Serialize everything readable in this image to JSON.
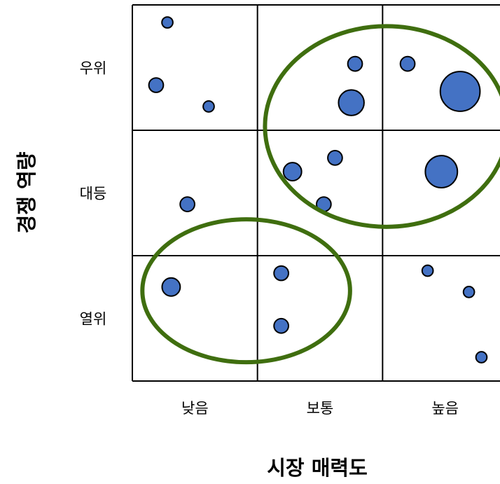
{
  "chart_data": {
    "type": "scatter",
    "variant": "bubble matrix (3x3 grid)",
    "xlabel": "시장 매력도",
    "ylabel": "경쟁 역량",
    "x_categories": [
      "낮음",
      "보통",
      "높음"
    ],
    "y_categories": [
      "열위",
      "대등",
      "우위"
    ],
    "grid": true,
    "legend": "none",
    "colors": {
      "bubble_fill": "#4472c4",
      "bubble_stroke": "#000000",
      "ellipse_stroke": "#3f6e0f"
    },
    "points": [
      {
        "x": 0.28,
        "y": 2.86,
        "size": 1
      },
      {
        "x": 0.19,
        "y": 2.36,
        "size": 2
      },
      {
        "x": 0.61,
        "y": 2.19,
        "size": 1
      },
      {
        "x": 1.78,
        "y": 2.53,
        "size": 2
      },
      {
        "x": 1.75,
        "y": 2.22,
        "size": 5
      },
      {
        "x": 2.2,
        "y": 2.53,
        "size": 2
      },
      {
        "x": 2.62,
        "y": 2.31,
        "size": 8
      },
      {
        "x": 0.44,
        "y": 1.41,
        "size": 2
      },
      {
        "x": 1.28,
        "y": 1.67,
        "size": 3
      },
      {
        "x": 1.62,
        "y": 1.78,
        "size": 2
      },
      {
        "x": 1.53,
        "y": 1.41,
        "size": 2
      },
      {
        "x": 2.47,
        "y": 1.67,
        "size": 6
      },
      {
        "x": 0.31,
        "y": 0.75,
        "size": 3
      },
      {
        "x": 1.19,
        "y": 0.86,
        "size": 2
      },
      {
        "x": 1.19,
        "y": 0.44,
        "size": 2
      },
      {
        "x": 2.36,
        "y": 0.88,
        "size": 1
      },
      {
        "x": 2.69,
        "y": 0.71,
        "size": 1
      },
      {
        "x": 2.79,
        "y": 0.19,
        "size": 1
      }
    ],
    "groups": [
      {
        "cx": 2.03,
        "cy": 2.03,
        "rx": 0.97,
        "ry": 0.8
      },
      {
        "cx": 0.91,
        "cy": 0.72,
        "rx": 0.83,
        "ry": 0.57
      }
    ]
  }
}
